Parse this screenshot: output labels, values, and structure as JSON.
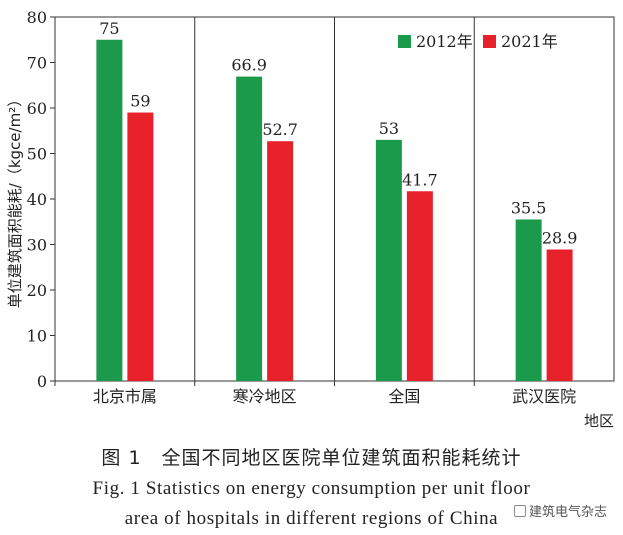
{
  "chart_data": {
    "type": "bar",
    "ylabel": "单位建筑面积能耗/（kgce/m²）",
    "xlabel": "地区",
    "ylim": [
      0,
      80
    ],
    "yticks": [
      0,
      10,
      20,
      30,
      40,
      50,
      60,
      70,
      80
    ],
    "categories": [
      "北京市属",
      "寒冷地区",
      "全国",
      "武汉医院"
    ],
    "series": [
      {
        "name": "2012年",
        "color": "#1a9a4a",
        "values": [
          75,
          66.9,
          53,
          35.5
        ],
        "labels": [
          "75",
          "66.9",
          "53",
          "35.5"
        ]
      },
      {
        "name": "2021年",
        "color": "#e8202a",
        "values": [
          59,
          52.7,
          41.7,
          28.9
        ],
        "labels": [
          "59",
          "52.7",
          "41.7",
          "28.9"
        ]
      }
    ],
    "legend_position": "top-right",
    "grid": "vertical separators between categories"
  },
  "caption": {
    "cn": "图 1　全国不同地区医院单位建筑面积能耗统计",
    "en_line1": "Fig. 1   Statistics on energy consumption per unit floor",
    "en_line2": "area of hospitals in different regions of China"
  },
  "watermark": "建筑电气杂志"
}
